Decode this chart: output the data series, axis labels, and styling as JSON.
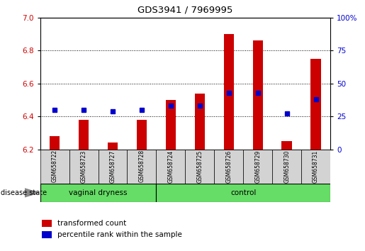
{
  "title": "GDS3941 / 7969995",
  "samples": [
    "GSM658722",
    "GSM658723",
    "GSM658727",
    "GSM658728",
    "GSM658724",
    "GSM658725",
    "GSM658726",
    "GSM658729",
    "GSM658730",
    "GSM658731"
  ],
  "transformed_count_top": [
    6.28,
    6.38,
    6.24,
    6.38,
    6.5,
    6.54,
    6.9,
    6.86,
    6.25,
    6.75
  ],
  "percentile_rank": [
    30,
    30,
    29,
    30,
    33,
    33,
    43,
    43,
    27,
    38
  ],
  "bar_bottom": 6.2,
  "ylim_left": [
    6.2,
    7.0
  ],
  "ylim_right": [
    0,
    100
  ],
  "yticks_left": [
    6.2,
    6.4,
    6.6,
    6.8,
    7
  ],
  "yticks_right": [
    0,
    25,
    50,
    75,
    100
  ],
  "bar_color": "#CC0000",
  "percentile_color": "#0000CC",
  "label_color_left": "#CC0000",
  "label_color_right": "#0000CC",
  "group_label": "disease state",
  "legend_tc": "transformed count",
  "legend_pr": "percentile rank within the sample",
  "vd_label": "vaginal dryness",
  "ctrl_label": "control",
  "vd_count": 4,
  "ctrl_count": 6,
  "green_color": "#66DD66"
}
